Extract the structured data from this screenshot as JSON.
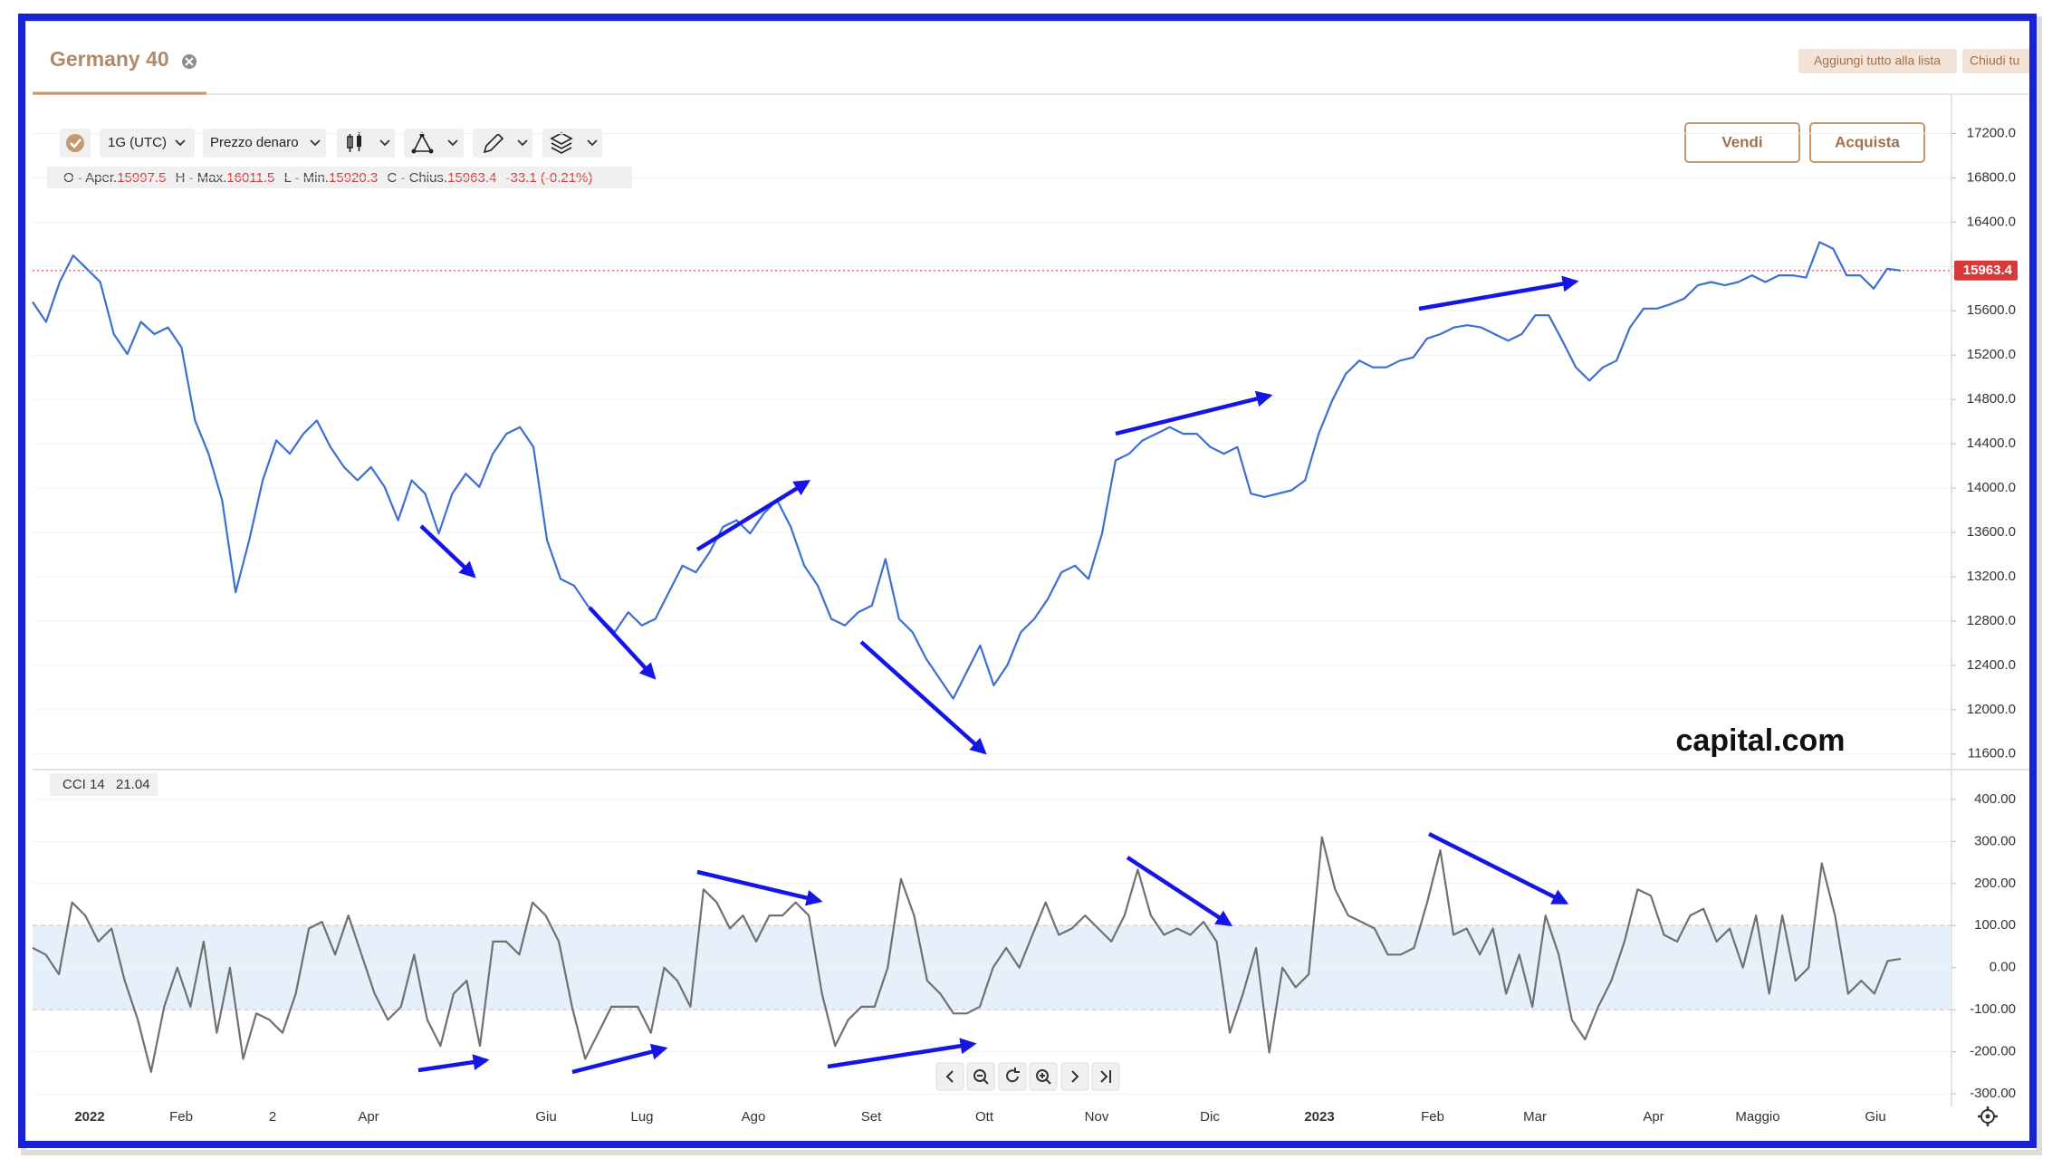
{
  "header": {
    "tab": "Germany 40",
    "buttons": [
      "Aggiungi tutto alla lista",
      "Chiudi tu"
    ]
  },
  "toolbar": {
    "interval": "1G (UTC)",
    "price_type": "Prezzo denaro",
    "sell": "Vendi",
    "buy": "Acquista"
  },
  "ohlc": {
    "open_label": "O - Aper.",
    "open": "15997.5",
    "high_label": "H - Max.",
    "high": "16011.5",
    "low_label": "L - Min.",
    "low": "15920.3",
    "close_label": "C - Chius.",
    "close": "15963.4",
    "change": "-33.1 (-0.21%)"
  },
  "watermark": "capital.com",
  "chart_data": [
    {
      "type": "line",
      "series": [
        {
          "color": "#3d6fd1",
          "values": [
            15680,
            15500,
            15860,
            16100,
            15980,
            15860,
            15390,
            15210,
            15500,
            15390,
            15450,
            15270,
            14610,
            14310,
            13890,
            13060,
            13530,
            14070,
            14430,
            14310,
            14490,
            14610,
            14370,
            14190,
            14070,
            14190,
            14010,
            13710,
            14070,
            13950,
            13590,
            13950,
            14130,
            14010,
            14310,
            14490,
            14550,
            14370,
            13530,
            13180,
            13120,
            12940,
            12820,
            12700,
            12880,
            12760,
            12820,
            13060,
            13300,
            13240,
            13420,
            13650,
            13710,
            13590,
            13770,
            13890,
            13650,
            13300,
            13120,
            12820,
            12760,
            12880,
            12940,
            13360,
            12820,
            12700,
            12460,
            12280,
            12100,
            12340,
            12580,
            12220,
            12400,
            12700,
            12820,
            13000,
            13240,
            13300,
            13180,
            13590,
            14250,
            14310,
            14430,
            14490,
            14550,
            14490,
            14490,
            14370,
            14310,
            14370,
            13950,
            13920,
            13950,
            13980,
            14070,
            14490,
            14790,
            15030,
            15150,
            15090,
            15090,
            15150,
            15180,
            15350,
            15390,
            15450,
            15470,
            15450,
            15390,
            15330,
            15390,
            15560,
            15560,
            15330,
            15090,
            14970,
            15090,
            15150,
            15450,
            15620,
            15620,
            15660,
            15710,
            15830,
            15860,
            15830,
            15860,
            15920,
            15860,
            15920,
            15920,
            15900,
            16220,
            16160,
            15920,
            15920,
            15800,
            15980,
            15963.4
          ]
        }
      ],
      "ylim": [
        11500,
        17400
      ],
      "yticks": [
        {
          "value": 17200,
          "label": "17200.0"
        },
        {
          "value": 16800,
          "label": "16800.0"
        },
        {
          "value": 16400,
          "label": "16400.0"
        },
        {
          "value": 16000,
          "label": "16000.0"
        },
        {
          "value": 15600,
          "label": "15600.0"
        },
        {
          "value": 15200,
          "label": "15200.0"
        },
        {
          "value": 14800,
          "label": "14800.0"
        },
        {
          "value": 14400,
          "label": "14400.0"
        },
        {
          "value": 14000,
          "label": "14000.0"
        },
        {
          "value": 13600,
          "label": "13600.0"
        },
        {
          "value": 13200,
          "label": "13200.0"
        },
        {
          "value": 12800,
          "label": "12800.0"
        },
        {
          "value": 12400,
          "label": "12400.0"
        },
        {
          "value": 12000,
          "label": "12000.0"
        },
        {
          "value": 11600,
          "label": "11600.0"
        }
      ],
      "last_price": 15963.4,
      "last_price_color": "#d9393b",
      "grid": true
    },
    {
      "type": "line",
      "label": "CCI 14",
      "series": [
        {
          "color": "#707070",
          "values": [
            47,
            31,
            -16,
            155,
            124,
            62,
            93,
            -31,
            -124,
            -248,
            -93,
            0,
            -93,
            62,
            -155,
            0,
            -217,
            -109,
            -124,
            -155,
            -62,
            93,
            109,
            31,
            124,
            31,
            -62,
            -124,
            -93,
            31,
            -124,
            -186,
            -62,
            -31,
            -186,
            62,
            62,
            31,
            155,
            124,
            62,
            -93,
            -217,
            -155,
            -93,
            -93,
            -93,
            -155,
            0,
            -31,
            -93,
            186,
            155,
            93,
            124,
            62,
            124,
            124,
            155,
            124,
            -62,
            -186,
            -124,
            -93,
            -93,
            0,
            211,
            124,
            -31,
            -62,
            -109,
            -109,
            -93,
            0,
            47,
            0,
            78,
            155,
            78,
            93,
            124,
            93,
            62,
            124,
            233,
            124,
            78,
            93,
            78,
            109,
            62,
            -155,
            -62,
            47,
            -202,
            0,
            -47,
            -16,
            310,
            186,
            124,
            109,
            93,
            31,
            31,
            47,
            155,
            279,
            78,
            93,
            31,
            93,
            -62,
            31,
            -93,
            124,
            31,
            -124,
            -171,
            -93,
            -31,
            62,
            186,
            171,
            78,
            62,
            124,
            140,
            62,
            93,
            0,
            124,
            -62,
            124,
            -31,
            0,
            248,
            124,
            -62,
            -31,
            -62,
            16,
            21.04
          ]
        }
      ],
      "ylim": [
        -330,
        460
      ],
      "yticks": [
        {
          "value": 400,
          "label": "400.00"
        },
        {
          "value": 300,
          "label": "300.00"
        },
        {
          "value": 200,
          "label": "200.00"
        },
        {
          "value": 100,
          "label": "100.00"
        },
        {
          "value": 0,
          "label": "0.00"
        },
        {
          "value": -100,
          "label": "-100.00"
        },
        {
          "value": -200,
          "label": "-200.00"
        },
        {
          "value": -300,
          "label": "-300.00"
        }
      ],
      "band": [
        -100,
        100
      ],
      "band_color": "#e6f0fb",
      "grid": true,
      "xtick_labels": [
        "2022",
        "Feb",
        "2",
        "Apr",
        "Giu",
        "Lug",
        "Ago",
        "Set",
        "Ott",
        "Nov",
        "Dic",
        "2023",
        "Feb",
        "Mar",
        "Apr",
        "Maggio",
        "Giu"
      ]
    }
  ]
}
